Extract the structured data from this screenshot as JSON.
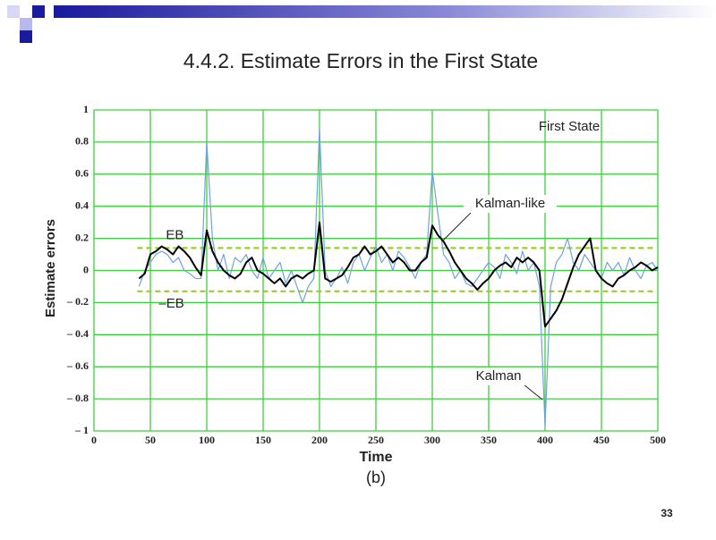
{
  "slide_title": "4.4.2. Estimate Errors in the First State",
  "page_number": "33",
  "chart_data": {
    "type": "line",
    "subtitle": "(b)",
    "annotation": "First State",
    "x_label": "Time",
    "y_label": "Estimate errors",
    "xlim": [
      0,
      500
    ],
    "xticks": [
      0,
      50,
      100,
      150,
      200,
      250,
      300,
      350,
      400,
      450,
      500
    ],
    "ylim": [
      -1,
      1
    ],
    "yticks": [
      {
        "value": -1,
        "label": "– 1"
      },
      {
        "value": -0.8,
        "label": "– 0.8"
      },
      {
        "value": -0.6,
        "label": "– 0.6"
      },
      {
        "value": -0.4,
        "label": "– 0.4"
      },
      {
        "value": -0.2,
        "label": "– 0.2"
      },
      0,
      0.2,
      0.4,
      0.6,
      0.8,
      1
    ],
    "grid": true,
    "grid_color": "#3ccf3c",
    "reference_lines": [
      {
        "label": "EB",
        "value": 0.14,
        "color": "#9acd32"
      },
      {
        "label": "–EB",
        "value": -0.13,
        "color": "#9acd32"
      }
    ],
    "x": [
      40,
      45,
      50,
      55,
      60,
      65,
      70,
      75,
      80,
      85,
      90,
      95,
      100,
      105,
      110,
      115,
      120,
      125,
      130,
      135,
      140,
      145,
      150,
      155,
      160,
      165,
      170,
      175,
      180,
      185,
      190,
      195,
      200,
      205,
      210,
      215,
      220,
      225,
      230,
      235,
      240,
      245,
      250,
      255,
      260,
      265,
      270,
      275,
      280,
      285,
      290,
      295,
      300,
      305,
      310,
      315,
      320,
      325,
      330,
      335,
      340,
      345,
      350,
      355,
      360,
      365,
      370,
      375,
      380,
      385,
      390,
      395,
      400,
      405,
      410,
      415,
      420,
      425,
      430,
      435,
      440,
      445,
      450,
      455,
      460,
      465,
      470,
      475,
      480,
      485,
      490,
      495,
      500
    ],
    "series": [
      {
        "name": "Kalman",
        "color": "#6fa3dc",
        "width": 1.2,
        "values": [
          -0.1,
          0.0,
          0.05,
          0.1,
          0.12,
          0.1,
          0.05,
          0.08,
          0.0,
          -0.02,
          -0.05,
          -0.05,
          0.8,
          0.2,
          0.0,
          0.1,
          -0.05,
          0.08,
          0.05,
          0.1,
          0.0,
          -0.05,
          0.08,
          -0.05,
          0.0,
          0.05,
          -0.08,
          0.0,
          -0.1,
          -0.2,
          -0.1,
          -0.05,
          0.88,
          0.0,
          -0.1,
          -0.05,
          0.02,
          -0.08,
          0.05,
          0.1,
          0.0,
          0.08,
          0.15,
          0.05,
          0.1,
          0.0,
          0.12,
          0.08,
          0.02,
          -0.05,
          0.05,
          0.1,
          0.62,
          0.35,
          0.1,
          0.05,
          -0.05,
          0.0,
          -0.08,
          -0.1,
          -0.05,
          0.0,
          0.05,
          0.02,
          -0.05,
          0.1,
          0.05,
          -0.02,
          0.12,
          0.0,
          0.05,
          -0.1,
          -0.97,
          -0.1,
          0.05,
          0.1,
          0.2,
          0.05,
          0.0,
          0.1,
          0.05,
          0.0,
          -0.05,
          0.05,
          0.0,
          0.05,
          -0.03,
          0.08,
          0.0,
          -0.05,
          0.03,
          0.05,
          0.0
        ]
      },
      {
        "name": "Kalman-like",
        "color": "#000000",
        "width": 2,
        "values": [
          -0.05,
          -0.02,
          0.1,
          0.12,
          0.15,
          0.13,
          0.1,
          0.15,
          0.12,
          0.08,
          0.02,
          -0.03,
          0.25,
          0.12,
          0.05,
          0.0,
          -0.03,
          -0.05,
          -0.02,
          0.05,
          0.08,
          0.0,
          -0.02,
          -0.05,
          -0.08,
          -0.05,
          -0.1,
          -0.05,
          -0.03,
          -0.05,
          -0.02,
          0.0,
          0.3,
          -0.05,
          -0.07,
          -0.05,
          -0.03,
          0.02,
          0.08,
          0.1,
          0.15,
          0.1,
          0.12,
          0.15,
          0.1,
          0.05,
          0.08,
          0.05,
          0.0,
          0.0,
          0.05,
          0.08,
          0.28,
          0.22,
          0.18,
          0.12,
          0.05,
          0.0,
          -0.05,
          -0.08,
          -0.12,
          -0.08,
          -0.05,
          0.0,
          0.03,
          0.05,
          0.02,
          0.08,
          0.05,
          0.08,
          0.05,
          0.0,
          -0.35,
          -0.3,
          -0.25,
          -0.18,
          -0.08,
          0.02,
          0.1,
          0.15,
          0.2,
          0.0,
          -0.05,
          -0.08,
          -0.1,
          -0.05,
          -0.03,
          0.0,
          0.02,
          0.05,
          0.03,
          0.0,
          0.02
        ]
      }
    ]
  }
}
